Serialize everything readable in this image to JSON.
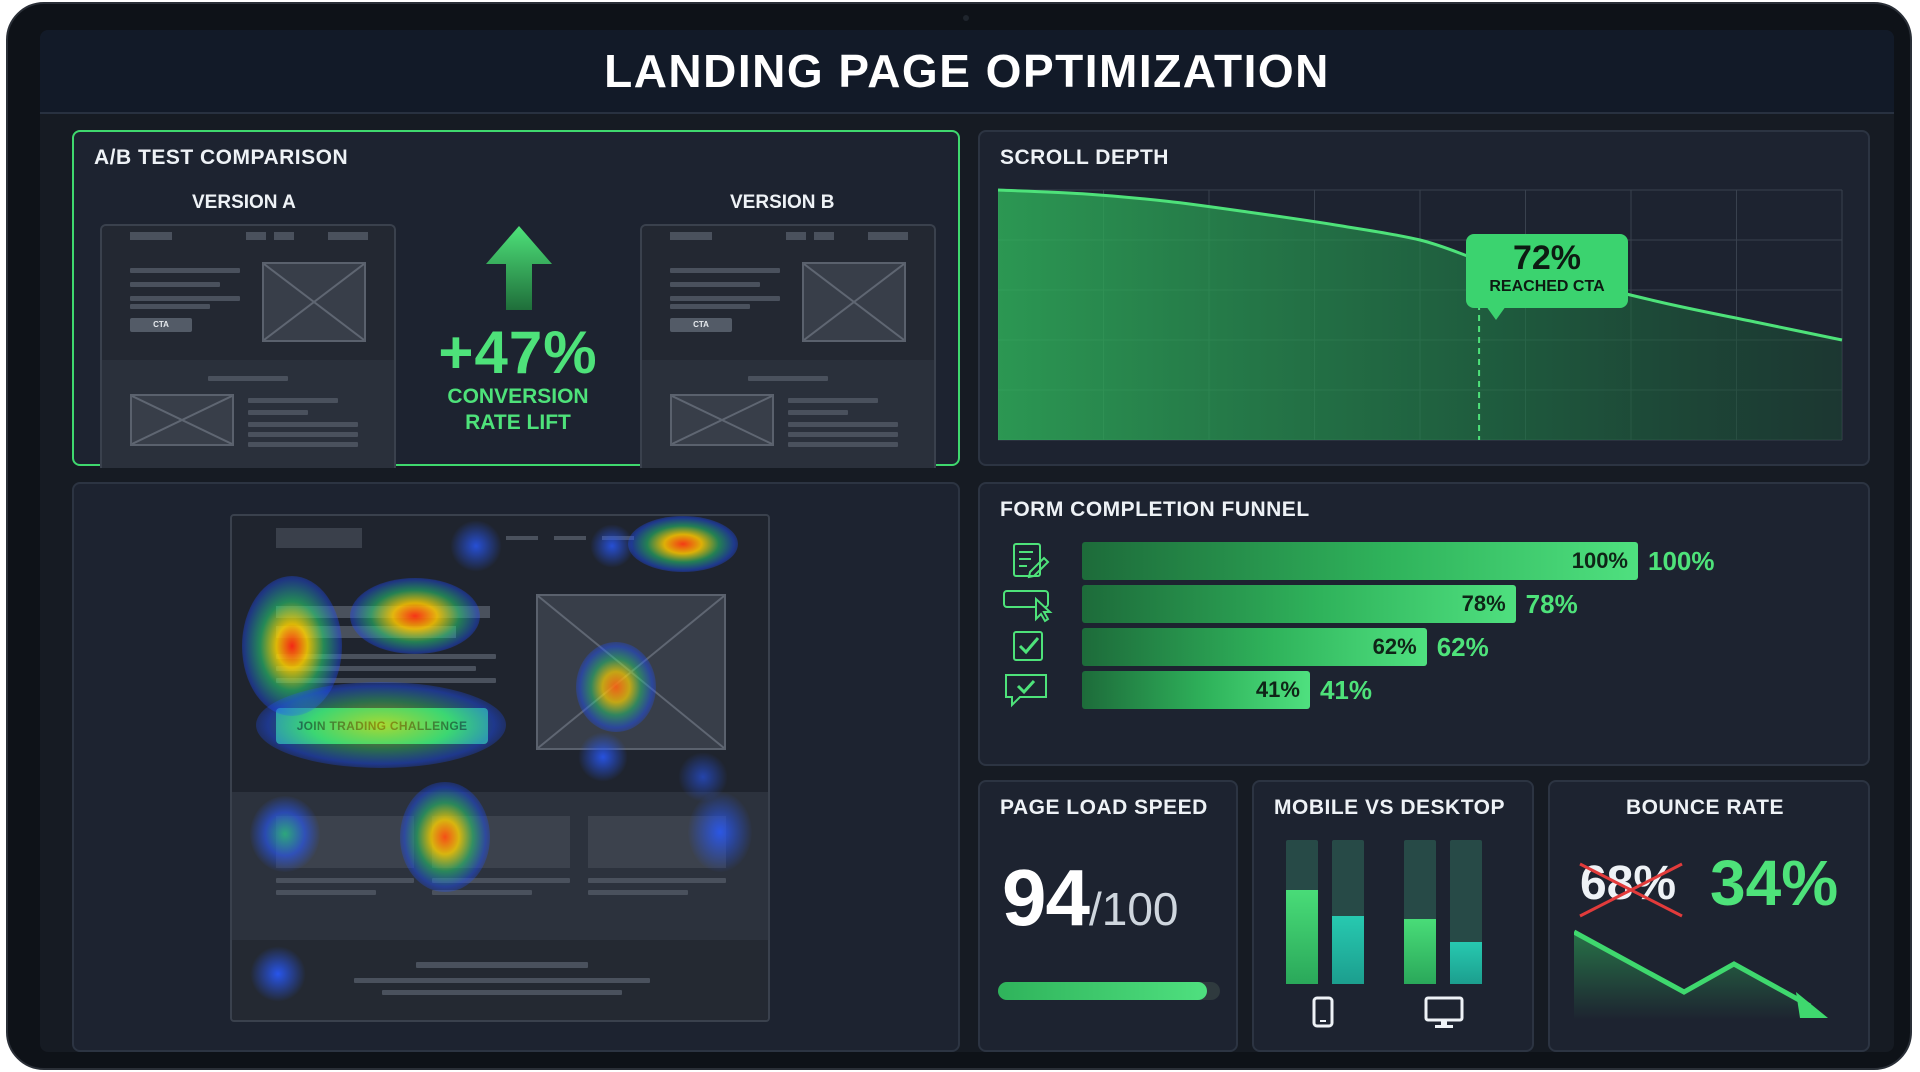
{
  "dashboard": {
    "title": "LANDING PAGE OPTIMIZATION",
    "accent_color": "#4ee27a"
  },
  "ab_test": {
    "title": "A/B TEST COMPARISON",
    "version_a_label": "VERSION A",
    "version_b_label": "VERSION B",
    "cta_text": "CTA",
    "lift_value": "+47%",
    "lift_caption_line1": "CONVERSION",
    "lift_caption_line2": "RATE LIFT",
    "lift_icon": "arrow-up-icon"
  },
  "scroll_depth": {
    "title": "SCROLL DEPTH",
    "callout_value": "72%",
    "callout_label": "REACHED CTA"
  },
  "chart_data": {
    "type": "area",
    "title": "SCROLL DEPTH",
    "x": [
      0,
      10,
      20,
      30,
      40,
      50,
      57,
      60,
      70,
      80,
      90,
      100
    ],
    "y": [
      100,
      98.5,
      95.5,
      91,
      86,
      80,
      72,
      70,
      62,
      54,
      47,
      40
    ],
    "annotation": {
      "x": 57,
      "y": 72,
      "label": "72% REACHED CTA"
    },
    "xlabel": "",
    "ylabel": "",
    "grid": true
  },
  "heatmap": {
    "button_label": "JOIN TRADING CHALLENGE"
  },
  "funnel": {
    "title": "FORM COMPLETION FUNNEL",
    "steps": [
      {
        "icon": "form-edit-icon",
        "value": 100,
        "label": "100%"
      },
      {
        "icon": "input-click-icon",
        "value": 78,
        "label": "78%"
      },
      {
        "icon": "checkbox-icon",
        "value": 62,
        "label": "62%"
      },
      {
        "icon": "chat-check-icon",
        "value": 41,
        "label": "41%"
      }
    ]
  },
  "page_load_speed": {
    "title": "PAGE LOAD SPEED",
    "score": "94",
    "denominator": "/100",
    "progress": 0.94
  },
  "mobile_vs_desktop": {
    "title": "MOBILE VS DESKTOP",
    "groups": [
      {
        "icon": "phone-icon",
        "green": 0.65,
        "teal": 0.47
      },
      {
        "icon": "desktop-icon",
        "green": 0.45,
        "teal": 0.29
      }
    ]
  },
  "bounce_rate": {
    "title": "BOUNCE RATE",
    "old_value": "68%",
    "new_value": "34%"
  }
}
